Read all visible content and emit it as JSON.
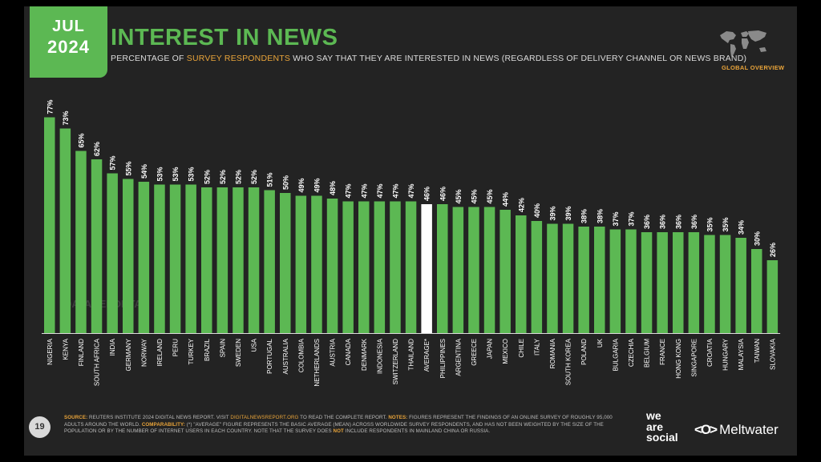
{
  "header": {
    "month": "JUL",
    "year": "2024",
    "title": "INTEREST IN NEWS",
    "subtitle_pre": "PERCENTAGE OF ",
    "subtitle_highlight": "SURVEY RESPONDENTS",
    "subtitle_post": " WHO SAY THAT THEY ARE INTERESTED IN NEWS (REGARDLESS OF DELIVERY CHANNEL OR NEWS BRAND)",
    "global_overview": "GLOBAL OVERVIEW"
  },
  "watermark": "DATAREPORTAL",
  "chart_data": {
    "type": "bar",
    "title": "INTEREST IN NEWS",
    "categories": [
      "NIGERIA",
      "KENYA",
      "FINLAND",
      "SOUTH AFRICA",
      "INDIA",
      "GERMANY",
      "NORWAY",
      "IRELAND",
      "PERU",
      "TURKEY",
      "BRAZIL",
      "SPAIN",
      "SWEDEN",
      "USA",
      "PORTUGAL",
      "AUSTRALIA",
      "COLOMBIA",
      "NETHERLANDS",
      "AUSTRIA",
      "CANADA",
      "DENMARK",
      "INDONESIA",
      "SWITZERLAND",
      "THAILAND",
      "AVERAGE*",
      "PHILIPPINES",
      "ARGENTINA",
      "GREECE",
      "JAPAN",
      "MEXICO",
      "CHILE",
      "ITALY",
      "ROMANIA",
      "SOUTH KOREA",
      "POLAND",
      "UK",
      "BULGARIA",
      "CZECHIA",
      "BELGIUM",
      "FRANCE",
      "HONG KONG",
      "SINGAPORE",
      "CROATIA",
      "HUNGARY",
      "MALAYSIA",
      "TAIWAN",
      "SLOVAKIA"
    ],
    "values": [
      77,
      73,
      65,
      62,
      57,
      55,
      54,
      53,
      53,
      53,
      52,
      52,
      52,
      52,
      51,
      50,
      49,
      49,
      48,
      47,
      47,
      47,
      47,
      47,
      46,
      46,
      45,
      45,
      45,
      44,
      42,
      40,
      39,
      39,
      38,
      38,
      37,
      37,
      36,
      36,
      36,
      36,
      35,
      35,
      34,
      30,
      26
    ],
    "value_labels": [
      "77%",
      "73%",
      "65%",
      "62%",
      "57%",
      "55%",
      "54%",
      "53%",
      "53%",
      "53%",
      "52%",
      "52%",
      "52%",
      "52%",
      "51%",
      "50%",
      "49%",
      "49%",
      "48%",
      "47%",
      "47%",
      "47%",
      "47%",
      "47%",
      "46%",
      "46%",
      "45%",
      "45%",
      "45%",
      "44%",
      "42%",
      "40%",
      "39%",
      "39%",
      "38%",
      "38%",
      "37%",
      "37%",
      "36%",
      "36%",
      "36%",
      "36%",
      "35%",
      "35%",
      "34%",
      "30%",
      "26%"
    ],
    "highlight_category": "AVERAGE*",
    "ylim": [
      0,
      100
    ],
    "xlabel": "",
    "ylabel": "",
    "colors": {
      "bar": "#5cb853",
      "highlight": "#ffffff",
      "label": "#ffffff",
      "axis": "#dddddd"
    }
  },
  "footer": {
    "page": "19",
    "source_label": "SOURCE:",
    "source_text": " REUTERS INSTITUTE 2024 DIGITAL NEWS REPORT. VISIT ",
    "source_link": "DIGITALNEWSREPORT.ORG",
    "source_text2": " TO READ THE COMPLETE REPORT. ",
    "notes_label": "NOTES:",
    "notes_text": " FIGURES REPRESENT THE FINDINGS OF AN ONLINE SURVEY OF ROUGHLY 95,000 ADULTS AROUND THE WORLD. ",
    "comparability_label": "COMPARABILITY:",
    "comparability_text": " (*) \"AVERAGE\" FIGURE REPRESENTS THE BASIC AVERAGE (MEAN) ACROSS WORLDWIDE SURVEY RESPONDENTS, AND HAS NOT BEEN WEIGHTED BY THE SIZE OF THE POPULATION OR BY THE NUMBER OF INTERNET USERS IN EACH COUNTRY. NOTE THAT THE SURVEY DOES ",
    "not_word": "NOT",
    "comparability_text2": " INCLUDE RESPONDENTS IN MAINLAND CHINA OR RUSSIA.",
    "brand1_l1": "we",
    "brand1_l2": "are",
    "brand1_l3": "social",
    "brand2_logo": "<O>",
    "brand2_name": "Meltwater"
  }
}
